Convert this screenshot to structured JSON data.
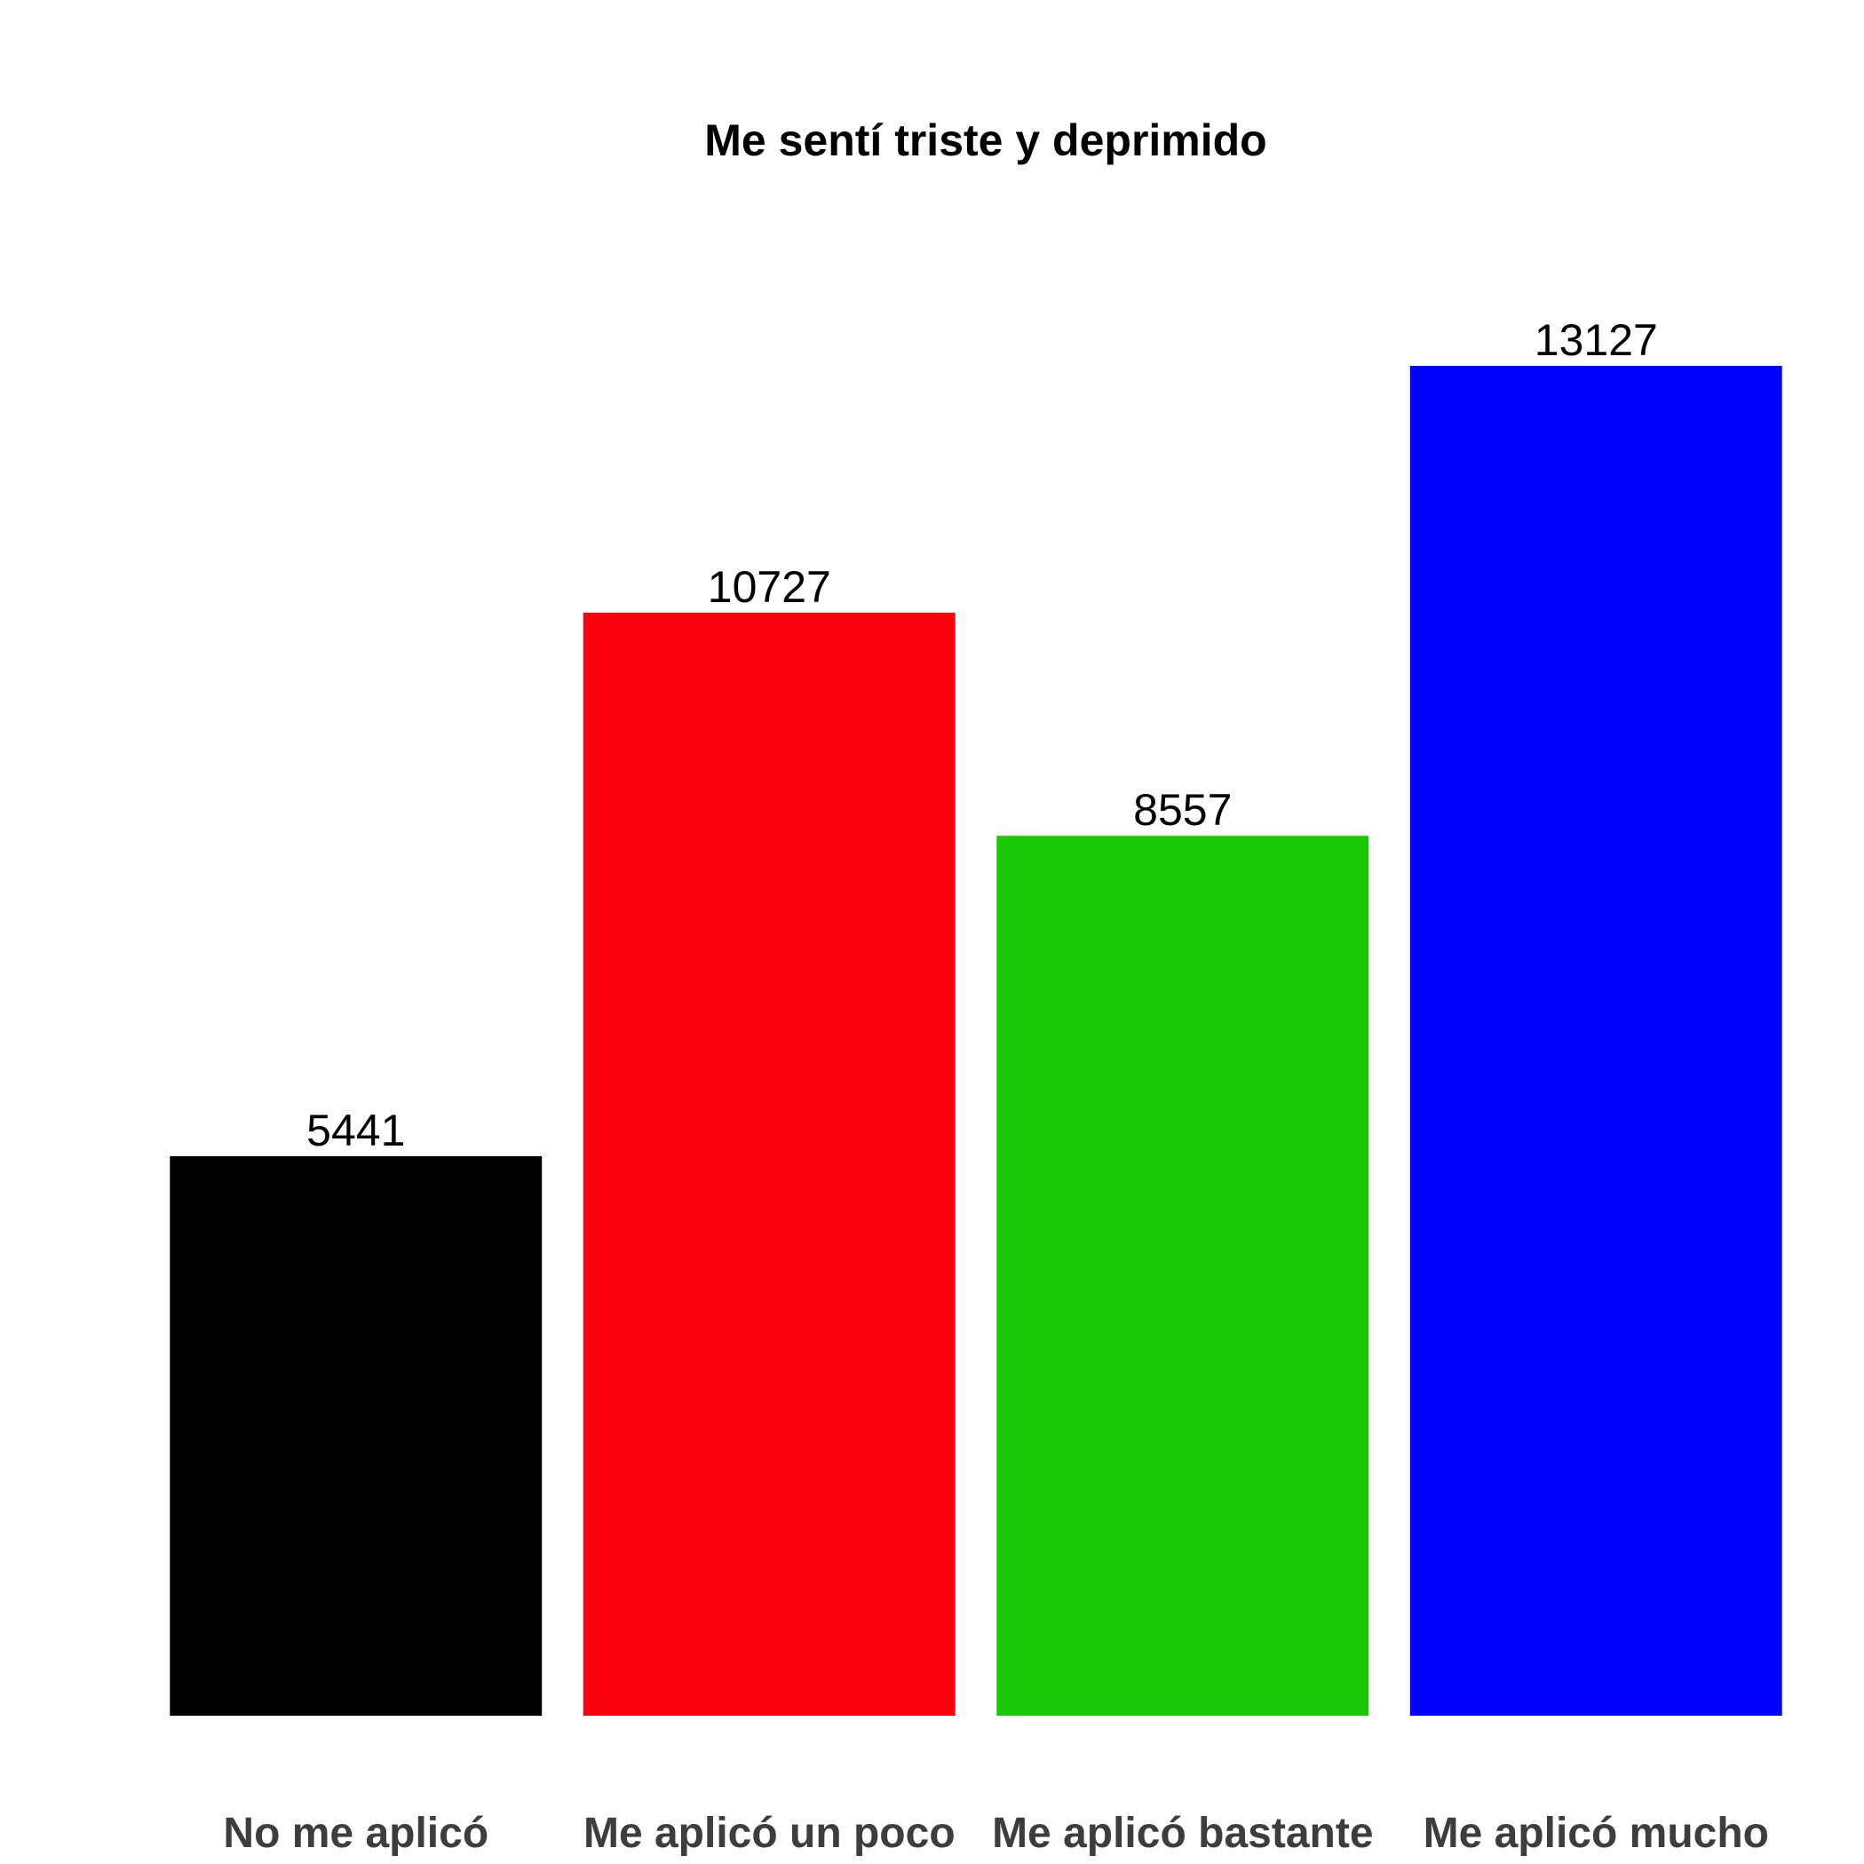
{
  "chart_data": {
    "type": "bar",
    "title": "Me sentí triste y deprimido",
    "xlabel": "",
    "ylabel": "",
    "categories": [
      "No me aplicó",
      "Me aplicó un poco",
      "Me aplicó bastante",
      "Me aplicó mucho"
    ],
    "values": [
      5441,
      10727,
      8557,
      13127
    ],
    "colors": [
      "#000000",
      "#f8000c",
      "#1bc805",
      "#0000ff"
    ],
    "ylim": [
      0,
      14500
    ],
    "grid": false,
    "legend": "none"
  }
}
